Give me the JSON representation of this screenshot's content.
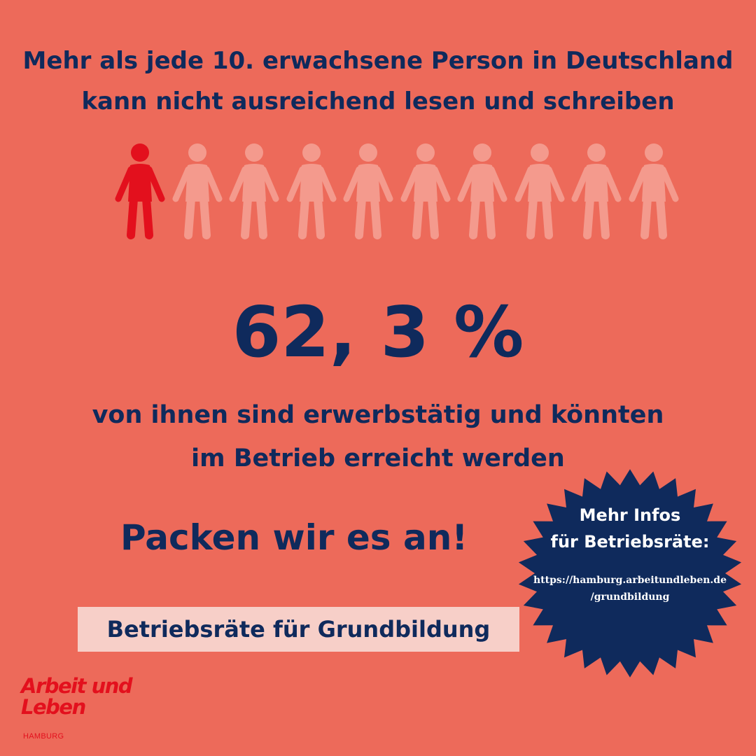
{
  "headline": {
    "line1": "Mehr als jede 10. erwachsene Person in Deutschland",
    "line2": "kann nicht ausreichend lesen und schreiben"
  },
  "people": {
    "total": 10,
    "highlighted": 1,
    "highlight_color": "#E3101D",
    "muted_color": "#F49A8D",
    "icon": "person-icon"
  },
  "big_number": "62, 3 %",
  "subline": {
    "line1": "von ihnen sind erwerbstätig und könnten",
    "line2": "im Betrieb erreicht werden"
  },
  "cta": "Packen wir es an!",
  "tag": "Betriebsräte für Grundbildung",
  "badge": {
    "title_line1": "Mehr Infos",
    "title_line2": "für Betriebsräte:",
    "url_line1": "https://hamburg.arbeitundleben.de",
    "url_line2": "/grundbildung"
  },
  "logo": {
    "line1": "Arbeit und",
    "line2": "Leben",
    "sub": "HAMBURG"
  },
  "colors": {
    "background": "#ED6A5A",
    "text": "#0F2A5C",
    "badge": "#0F2A5C",
    "tag_background": "#F7CFC8",
    "brand_red": "#E3101D"
  }
}
